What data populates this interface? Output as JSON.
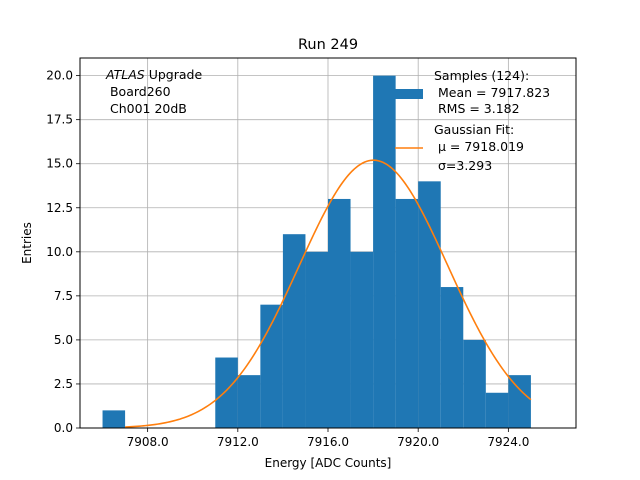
{
  "chart_data": {
    "type": "bar",
    "title": "Run 249",
    "xlabel": "Energy [ADC Counts]",
    "ylabel": "Entries",
    "xlim": [
      7905.0,
      7927.0
    ],
    "ylim": [
      0,
      21
    ],
    "x_ticks": [
      7908.0,
      7912.0,
      7916.0,
      7920.0,
      7924.0
    ],
    "x_tick_labels": [
      "7908.0",
      "7912.0",
      "7916.0",
      "7920.0",
      "7924.0"
    ],
    "y_ticks": [
      0,
      2.5,
      5,
      7.5,
      10,
      12.5,
      15,
      17.5,
      20
    ],
    "y_tick_labels": [
      "0.0",
      "2.5",
      "5.0",
      "7.5",
      "10.0",
      "12.5",
      "15.0",
      "17.5",
      "20.0"
    ],
    "grid": true,
    "histogram": {
      "bin_width": 1,
      "bin_edges_start": [
        7906,
        7907,
        7908,
        7909,
        7910,
        7911,
        7912,
        7913,
        7914,
        7915,
        7916,
        7917,
        7918,
        7919,
        7920,
        7921,
        7922,
        7923,
        7924
      ],
      "counts": [
        1,
        0,
        0,
        0,
        0,
        4,
        3,
        7,
        11,
        10,
        13,
        10,
        20,
        13,
        14,
        8,
        5,
        2,
        3
      ],
      "color": "#1f77b4"
    },
    "gaussian_fit": {
      "mu": 7918.019,
      "sigma": 3.293,
      "amplitude": 15.2,
      "x_range": [
        7907.0,
        7925.0
      ],
      "color": "#ff7f0e"
    },
    "annotation_lines": [
      "ATLAS",
      " Upgrade",
      " Board260",
      " Ch001 20dB"
    ],
    "legend": {
      "position": "top-right",
      "samples_lines": [
        "Samples (124):",
        " Mean = 7917.823",
        " RMS = 3.182"
      ],
      "fit_lines": [
        "Gaussian Fit:",
        " μ = 7918.019",
        " σ=3.293"
      ]
    }
  }
}
